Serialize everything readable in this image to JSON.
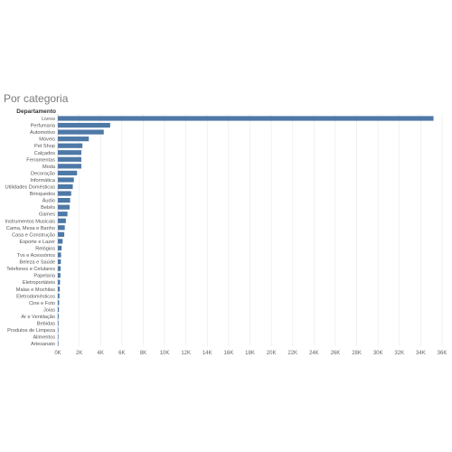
{
  "chart_data": {
    "type": "bar",
    "orientation": "horizontal",
    "title": "Por categoria",
    "category_header": "Departamento",
    "categories": [
      "Livros",
      "Perfumaria",
      "Automotivo",
      "Móveis",
      "Pet Shop",
      "Calçados",
      "Ferramentas",
      "Moda",
      "Decoração",
      "Informática",
      "Utilidades Domésticas",
      "Brinquedos",
      "Áudio",
      "Bebês",
      "Games",
      "Instrumentos Musicais",
      "Cama, Mesa e Banho",
      "Casa e Construção",
      "Esporte e Lazer",
      "Relógios",
      "Tvs e Acessórios",
      "Beleza e Saúde",
      "Telefones e Celulares",
      "Papelaria",
      "Eletroportáteis",
      "Malas e Mochilas",
      "Eletrodomésticos",
      "Cine e Foto",
      "Joias",
      "Ar e Ventilação",
      "Bebidas",
      "Produtos de Limpeza",
      "Alimentos",
      "Artesanato"
    ],
    "values": [
      35200,
      4900,
      4300,
      2900,
      2300,
      2200,
      2200,
      2200,
      1800,
      1500,
      1400,
      1250,
      1150,
      1100,
      900,
      750,
      650,
      600,
      450,
      350,
      300,
      280,
      260,
      240,
      200,
      180,
      150,
      120,
      100,
      80,
      60,
      50,
      40,
      30
    ],
    "x_ticks": [
      "0K",
      "2K",
      "4K",
      "6K",
      "8K",
      "10K",
      "12K",
      "14K",
      "16K",
      "18K",
      "20K",
      "22K",
      "24K",
      "26K",
      "28K",
      "30K",
      "32K",
      "34K",
      "36K"
    ],
    "xlim": [
      0,
      36000
    ],
    "grid": true,
    "bar_color": "#4e79a7"
  }
}
